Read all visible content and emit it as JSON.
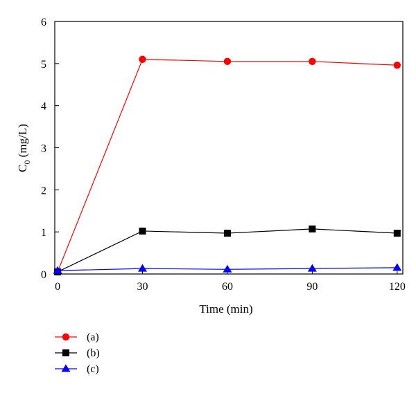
{
  "chart_data": {
    "type": "line",
    "xlabel": "Time (min)",
    "ylabel_main": "C",
    "ylabel_sub": "0",
    "ylabel_rest": " (mg/L)",
    "x": [
      0,
      30,
      60,
      90,
      120
    ],
    "xlim": [
      -1,
      122
    ],
    "ylim": [
      0,
      6
    ],
    "x_ticks": [
      0,
      30,
      60,
      90,
      120
    ],
    "y_ticks": [
      0,
      1,
      2,
      3,
      4,
      5,
      6
    ],
    "grid": false,
    "legend_position": "bottom-left, below plot",
    "series": [
      {
        "name": "(a)",
        "color": "#ff0000",
        "marker": "circle",
        "values": [
          0.05,
          5.1,
          5.05,
          5.05,
          4.96
        ]
      },
      {
        "name": "(b)",
        "color": "#000000",
        "marker": "square",
        "values": [
          0.05,
          1.02,
          0.97,
          1.07,
          0.97
        ]
      },
      {
        "name": "(c)",
        "color": "#0000ff",
        "marker": "triangle",
        "values": [
          0.08,
          0.13,
          0.11,
          0.13,
          0.15
        ]
      }
    ]
  }
}
